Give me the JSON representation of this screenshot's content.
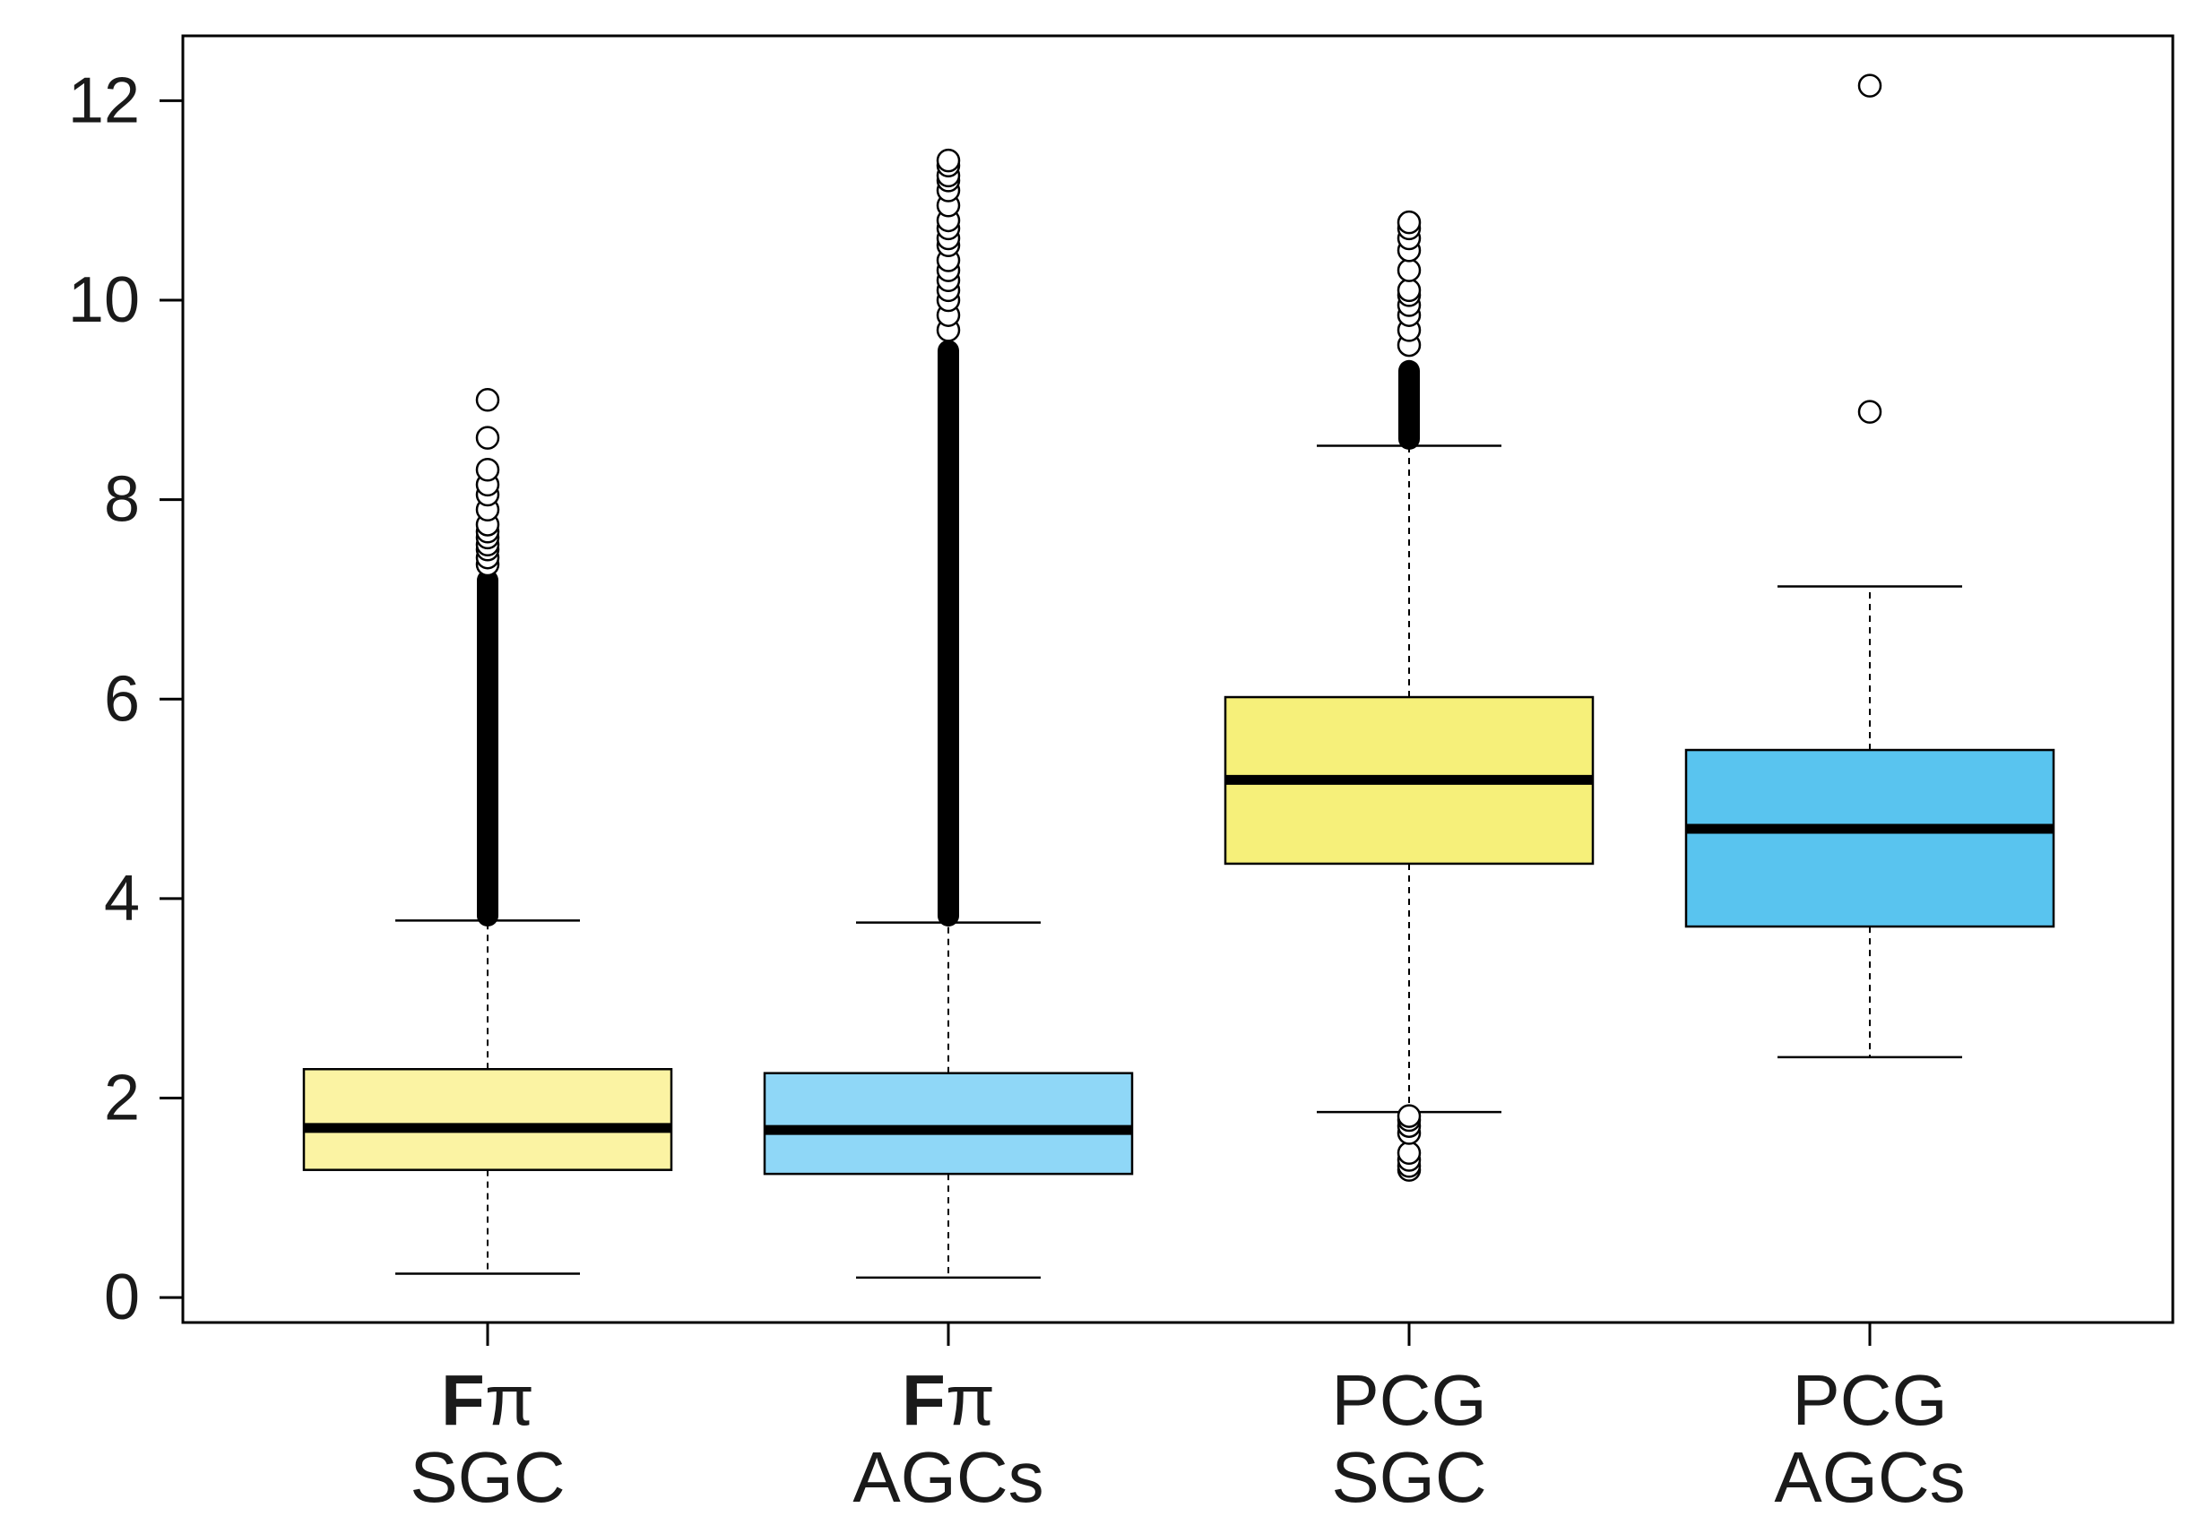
{
  "chart_data": {
    "type": "boxplot",
    "title": "",
    "xlabel": "",
    "ylabel": "",
    "ylim": [
      -0.25,
      12.65
    ],
    "yticks": [
      0,
      2,
      4,
      6,
      8,
      10,
      12
    ],
    "ytick_labels": [
      "0",
      "2",
      "4",
      "6",
      "8",
      "10",
      "12"
    ],
    "categories": [
      {
        "line1_bold": "F",
        "line1_rest": "π",
        "line2": "SGC"
      },
      {
        "line1_bold": "F",
        "line1_rest": "π",
        "line2": "AGCs"
      },
      {
        "line1_bold": "",
        "line1_rest": "PCG",
        "line2": "SGC"
      },
      {
        "line1_bold": "",
        "line1_rest": "PCG",
        "line2": "AGCs"
      }
    ],
    "series": [
      {
        "name": "Fπ SGC",
        "color": "#fbf3a3",
        "whisker_low": 0.24,
        "q1": 1.28,
        "median": 1.7,
        "q3": 2.29,
        "whisker_high": 3.78,
        "outlier_range": [
          3.72,
          7.3
        ],
        "outliers": [
          7.35,
          7.42,
          7.5,
          7.55,
          7.62,
          7.68,
          7.75,
          7.9,
          8.05,
          8.15,
          8.3,
          8.62,
          9.0
        ]
      },
      {
        "name": "Fπ AGCs",
        "color": "#8fd7f7",
        "whisker_low": 0.2,
        "q1": 1.24,
        "median": 1.68,
        "q3": 2.25,
        "whisker_high": 3.76,
        "outlier_range": [
          3.72,
          9.6
        ],
        "outliers": [
          9.7,
          9.85,
          10.0,
          10.1,
          10.2,
          10.3,
          10.4,
          10.55,
          10.62,
          10.72,
          10.8,
          10.95,
          11.1,
          11.2,
          11.25,
          11.35,
          11.4
        ]
      },
      {
        "name": "PCG SGC",
        "color": "#f6f07a",
        "whisker_low": 1.86,
        "q1": 4.35,
        "median": 5.19,
        "q3": 6.02,
        "whisker_high": 8.54,
        "outlier_range": [
          8.5,
          9.4
        ],
        "outliers": [
          1.28,
          1.32,
          1.38,
          1.45,
          1.65,
          1.72,
          1.78,
          1.82,
          9.55,
          9.7,
          9.85,
          9.95,
          10.05,
          10.1,
          10.3,
          10.5,
          10.62,
          10.72,
          10.78
        ]
      },
      {
        "name": "PCG AGCs",
        "color": "#59c4ef",
        "whisker_low": 2.41,
        "q1": 3.72,
        "median": 4.7,
        "q3": 5.49,
        "whisker_high": 7.13,
        "outlier_range": null,
        "outliers": [
          8.88,
          12.15
        ]
      }
    ]
  }
}
